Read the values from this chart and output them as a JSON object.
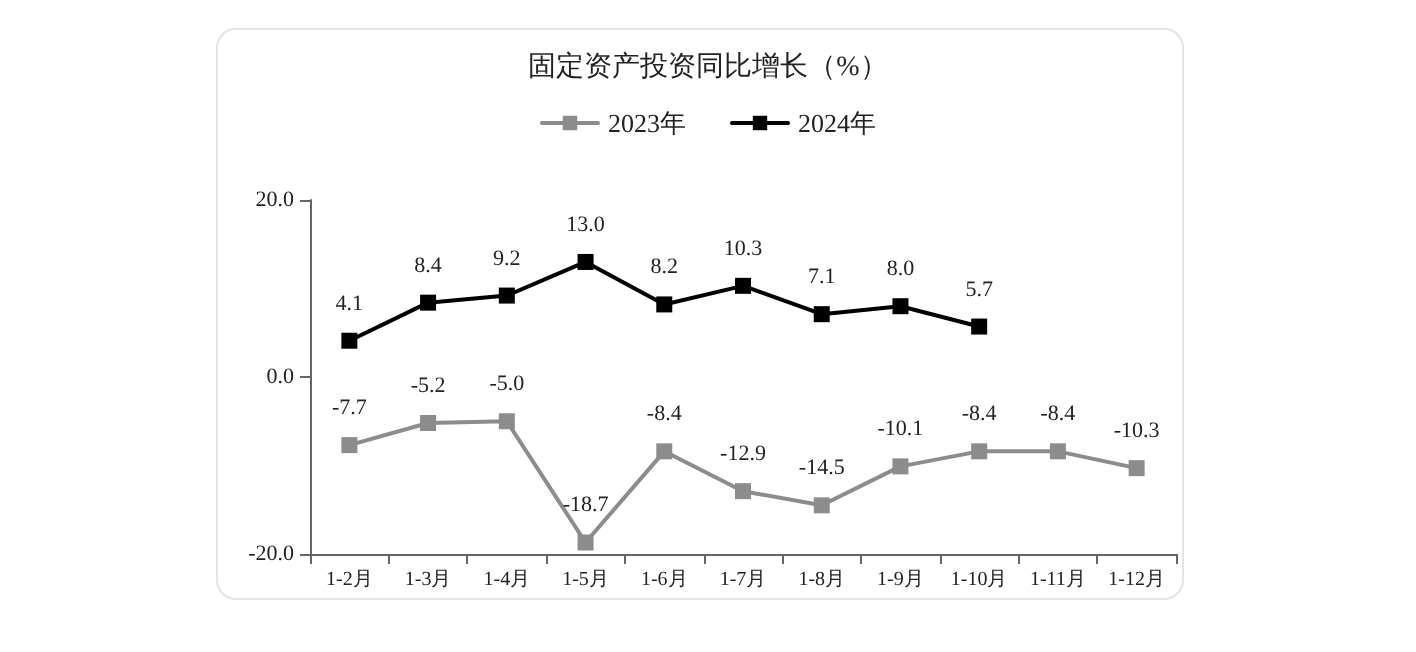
{
  "chart_data": {
    "type": "line",
    "title": "固定资产投资同比增长（%）",
    "categories": [
      "1-2月",
      "1-3月",
      "1-4月",
      "1-5月",
      "1-6月",
      "1-7月",
      "1-8月",
      "1-9月",
      "1-10月",
      "1-11月",
      "1-12月"
    ],
    "series": [
      {
        "name": "2023年",
        "color": "#8c8c8c",
        "values": [
          -7.7,
          -5.2,
          -5.0,
          -18.7,
          -8.4,
          -12.9,
          -14.5,
          -10.1,
          -8.4,
          -8.4,
          -10.3
        ],
        "value_labels": [
          "-7.7",
          "-5.2",
          "-5.0",
          "-18.7",
          "-8.4",
          "-12.9",
          "-14.5",
          "-10.1",
          "-8.4",
          "-8.4",
          "-10.3"
        ]
      },
      {
        "name": "2024年",
        "color": "#000000",
        "values": [
          4.1,
          8.4,
          9.2,
          13.0,
          8.2,
          10.3,
          7.1,
          8.0,
          5.7,
          null,
          null
        ],
        "value_labels": [
          "4.1",
          "8.4",
          "9.2",
          "13.0",
          "8.2",
          "10.3",
          "7.1",
          "8.0",
          "5.7",
          null,
          null
        ]
      }
    ],
    "ylim": [
      -20,
      20
    ],
    "yticks": [
      {
        "value": -20,
        "label": "-20.0"
      },
      {
        "value": 0,
        "label": "0.0"
      },
      {
        "value": 20,
        "label": "20.0"
      }
    ],
    "grid": false,
    "legend": "top",
    "marker": "square",
    "line_style": "solid"
  }
}
